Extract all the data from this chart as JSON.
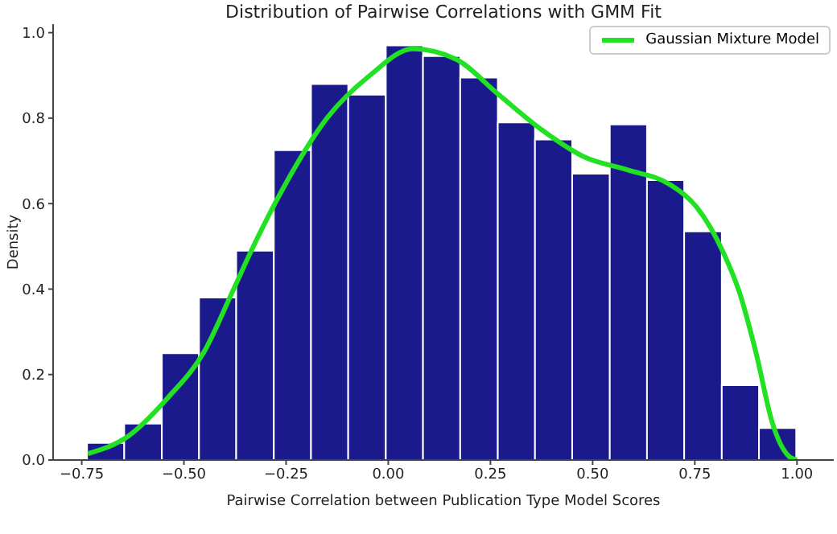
{
  "chart_data": {
    "type": "histogram",
    "title": "Distribution of Pairwise Correlations with GMM Fit",
    "xlabel": "Pairwise Correlation between Publication Type Model Scores",
    "ylabel": "Density",
    "bins": [
      -0.737,
      -0.646,
      -0.554,
      -0.463,
      -0.372,
      -0.28,
      -0.189,
      -0.098,
      -0.006,
      0.085,
      0.176,
      0.268,
      0.359,
      0.45,
      0.542,
      0.633,
      0.724,
      0.816,
      0.907,
      0.998
    ],
    "values": [
      0.04,
      0.085,
      0.25,
      0.38,
      0.49,
      0.725,
      0.88,
      0.855,
      0.97,
      0.945,
      0.895,
      0.79,
      0.75,
      0.67,
      0.785,
      0.655,
      0.535,
      0.175,
      0.075
    ],
    "color": "#1a1a8c",
    "series": [
      {
        "type": "line",
        "name": "Gaussian Mixture Model",
        "color": "#22e022",
        "x": [
          -0.735,
          -0.636,
          -0.54,
          -0.449,
          -0.383,
          -0.33,
          -0.256,
          -0.15,
          -0.045,
          0.06,
          0.165,
          0.27,
          0.375,
          0.48,
          0.585,
          0.69,
          0.755,
          0.82,
          0.86,
          0.9,
          0.94,
          0.98,
          1.0
        ],
        "values": [
          0.015,
          0.056,
          0.145,
          0.256,
          0.39,
          0.5,
          0.638,
          0.8,
          0.9,
          0.962,
          0.938,
          0.855,
          0.773,
          0.709,
          0.679,
          0.644,
          0.591,
          0.485,
          0.39,
          0.25,
          0.086,
          0.009,
          0.0
        ]
      }
    ],
    "xlim": [
      -0.82,
      1.09
    ],
    "ylim": [
      0,
      1.02
    ],
    "xticks": [
      {
        "value": -0.75,
        "label": "−0.75"
      },
      {
        "value": -0.5,
        "label": "−0.50"
      },
      {
        "value": -0.25,
        "label": "−0.25"
      },
      {
        "value": 0,
        "label": "0.00"
      },
      {
        "value": 0.25,
        "label": "0.25"
      },
      {
        "value": 0.5,
        "label": "0.50"
      },
      {
        "value": 0.75,
        "label": "0.75"
      },
      {
        "value": 1,
        "label": "1.00"
      }
    ],
    "yticks": [
      {
        "value": 0,
        "label": "0.0"
      },
      {
        "value": 0.2,
        "label": "0.2"
      },
      {
        "value": 0.4,
        "label": "0.4"
      },
      {
        "value": 0.6,
        "label": "0.6"
      },
      {
        "value": 0.8,
        "label": "0.8"
      },
      {
        "value": 1,
        "label": "1.0"
      }
    ],
    "legend": "top right",
    "grid": false
  }
}
